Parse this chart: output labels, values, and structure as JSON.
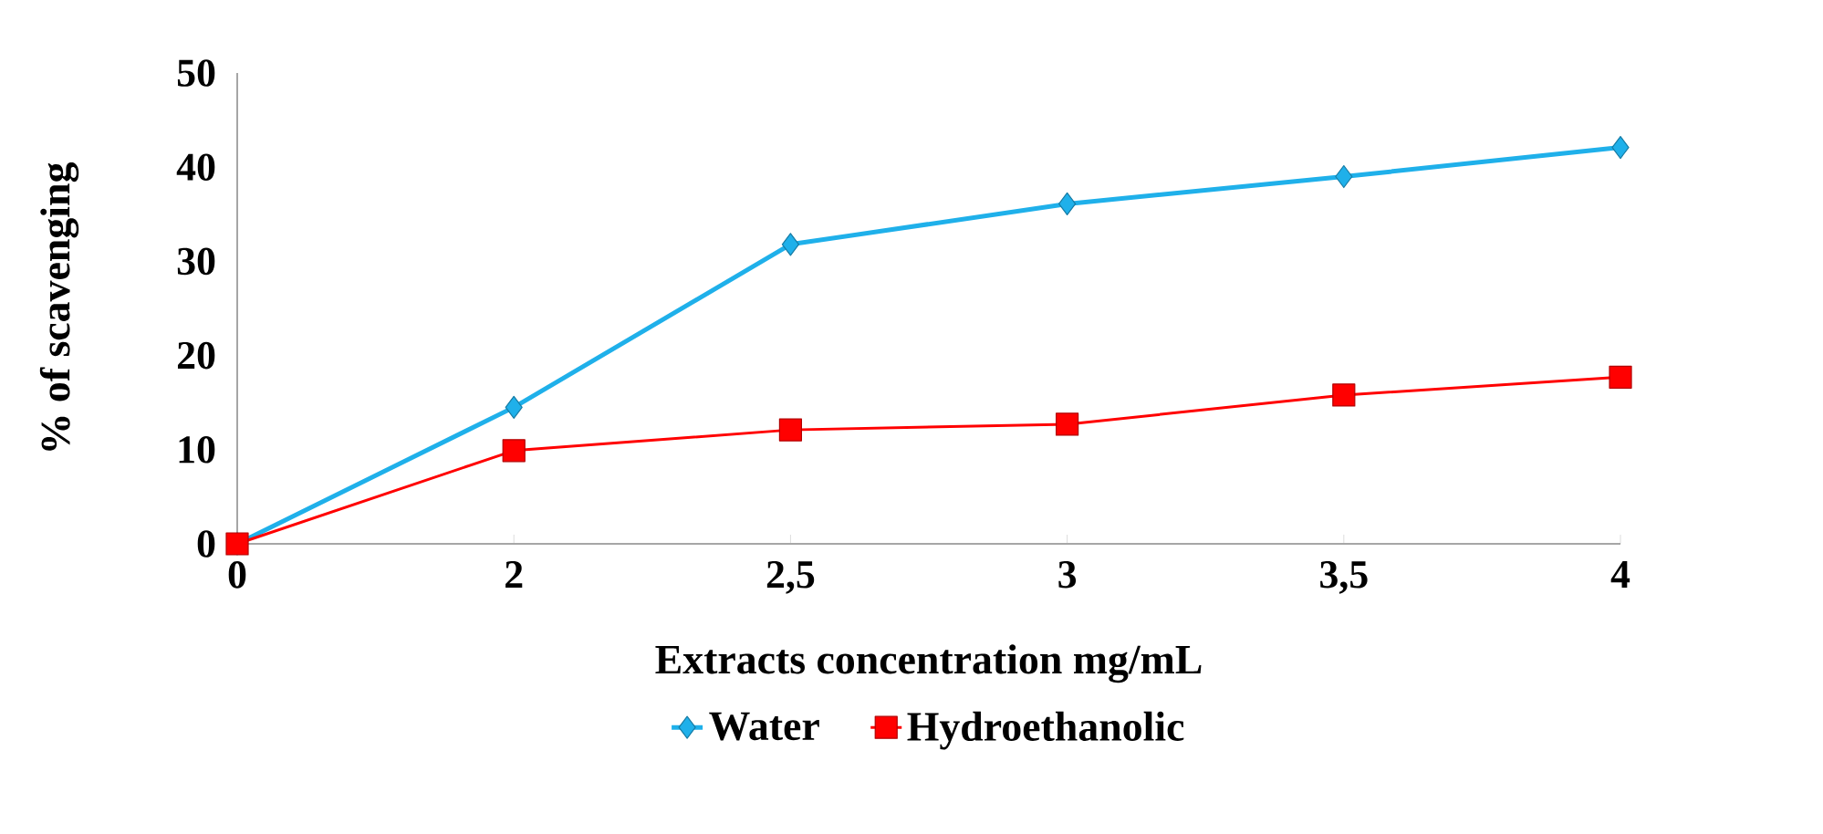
{
  "chart_data": {
    "type": "line",
    "xlabel": "Extracts concentration mg/mL",
    "ylabel": "% of scavenging",
    "categories": [
      "0",
      "2",
      "2,5",
      "3",
      "3,5",
      "4"
    ],
    "ylim": [
      0,
      50
    ],
    "yticks": [
      0,
      10,
      20,
      30,
      40,
      50
    ],
    "grid": false,
    "legend": "bottom",
    "series": [
      {
        "name": "Water",
        "color": "#1fb0ea",
        "marker": "diamond",
        "values": [
          0,
          14.5,
          31.8,
          36.1,
          39.0,
          42.1
        ]
      },
      {
        "name": "Hydroethanolic",
        "color": "#ff0000",
        "marker": "square",
        "values": [
          0,
          9.9,
          12.1,
          12.7,
          15.8,
          17.7
        ]
      }
    ]
  }
}
